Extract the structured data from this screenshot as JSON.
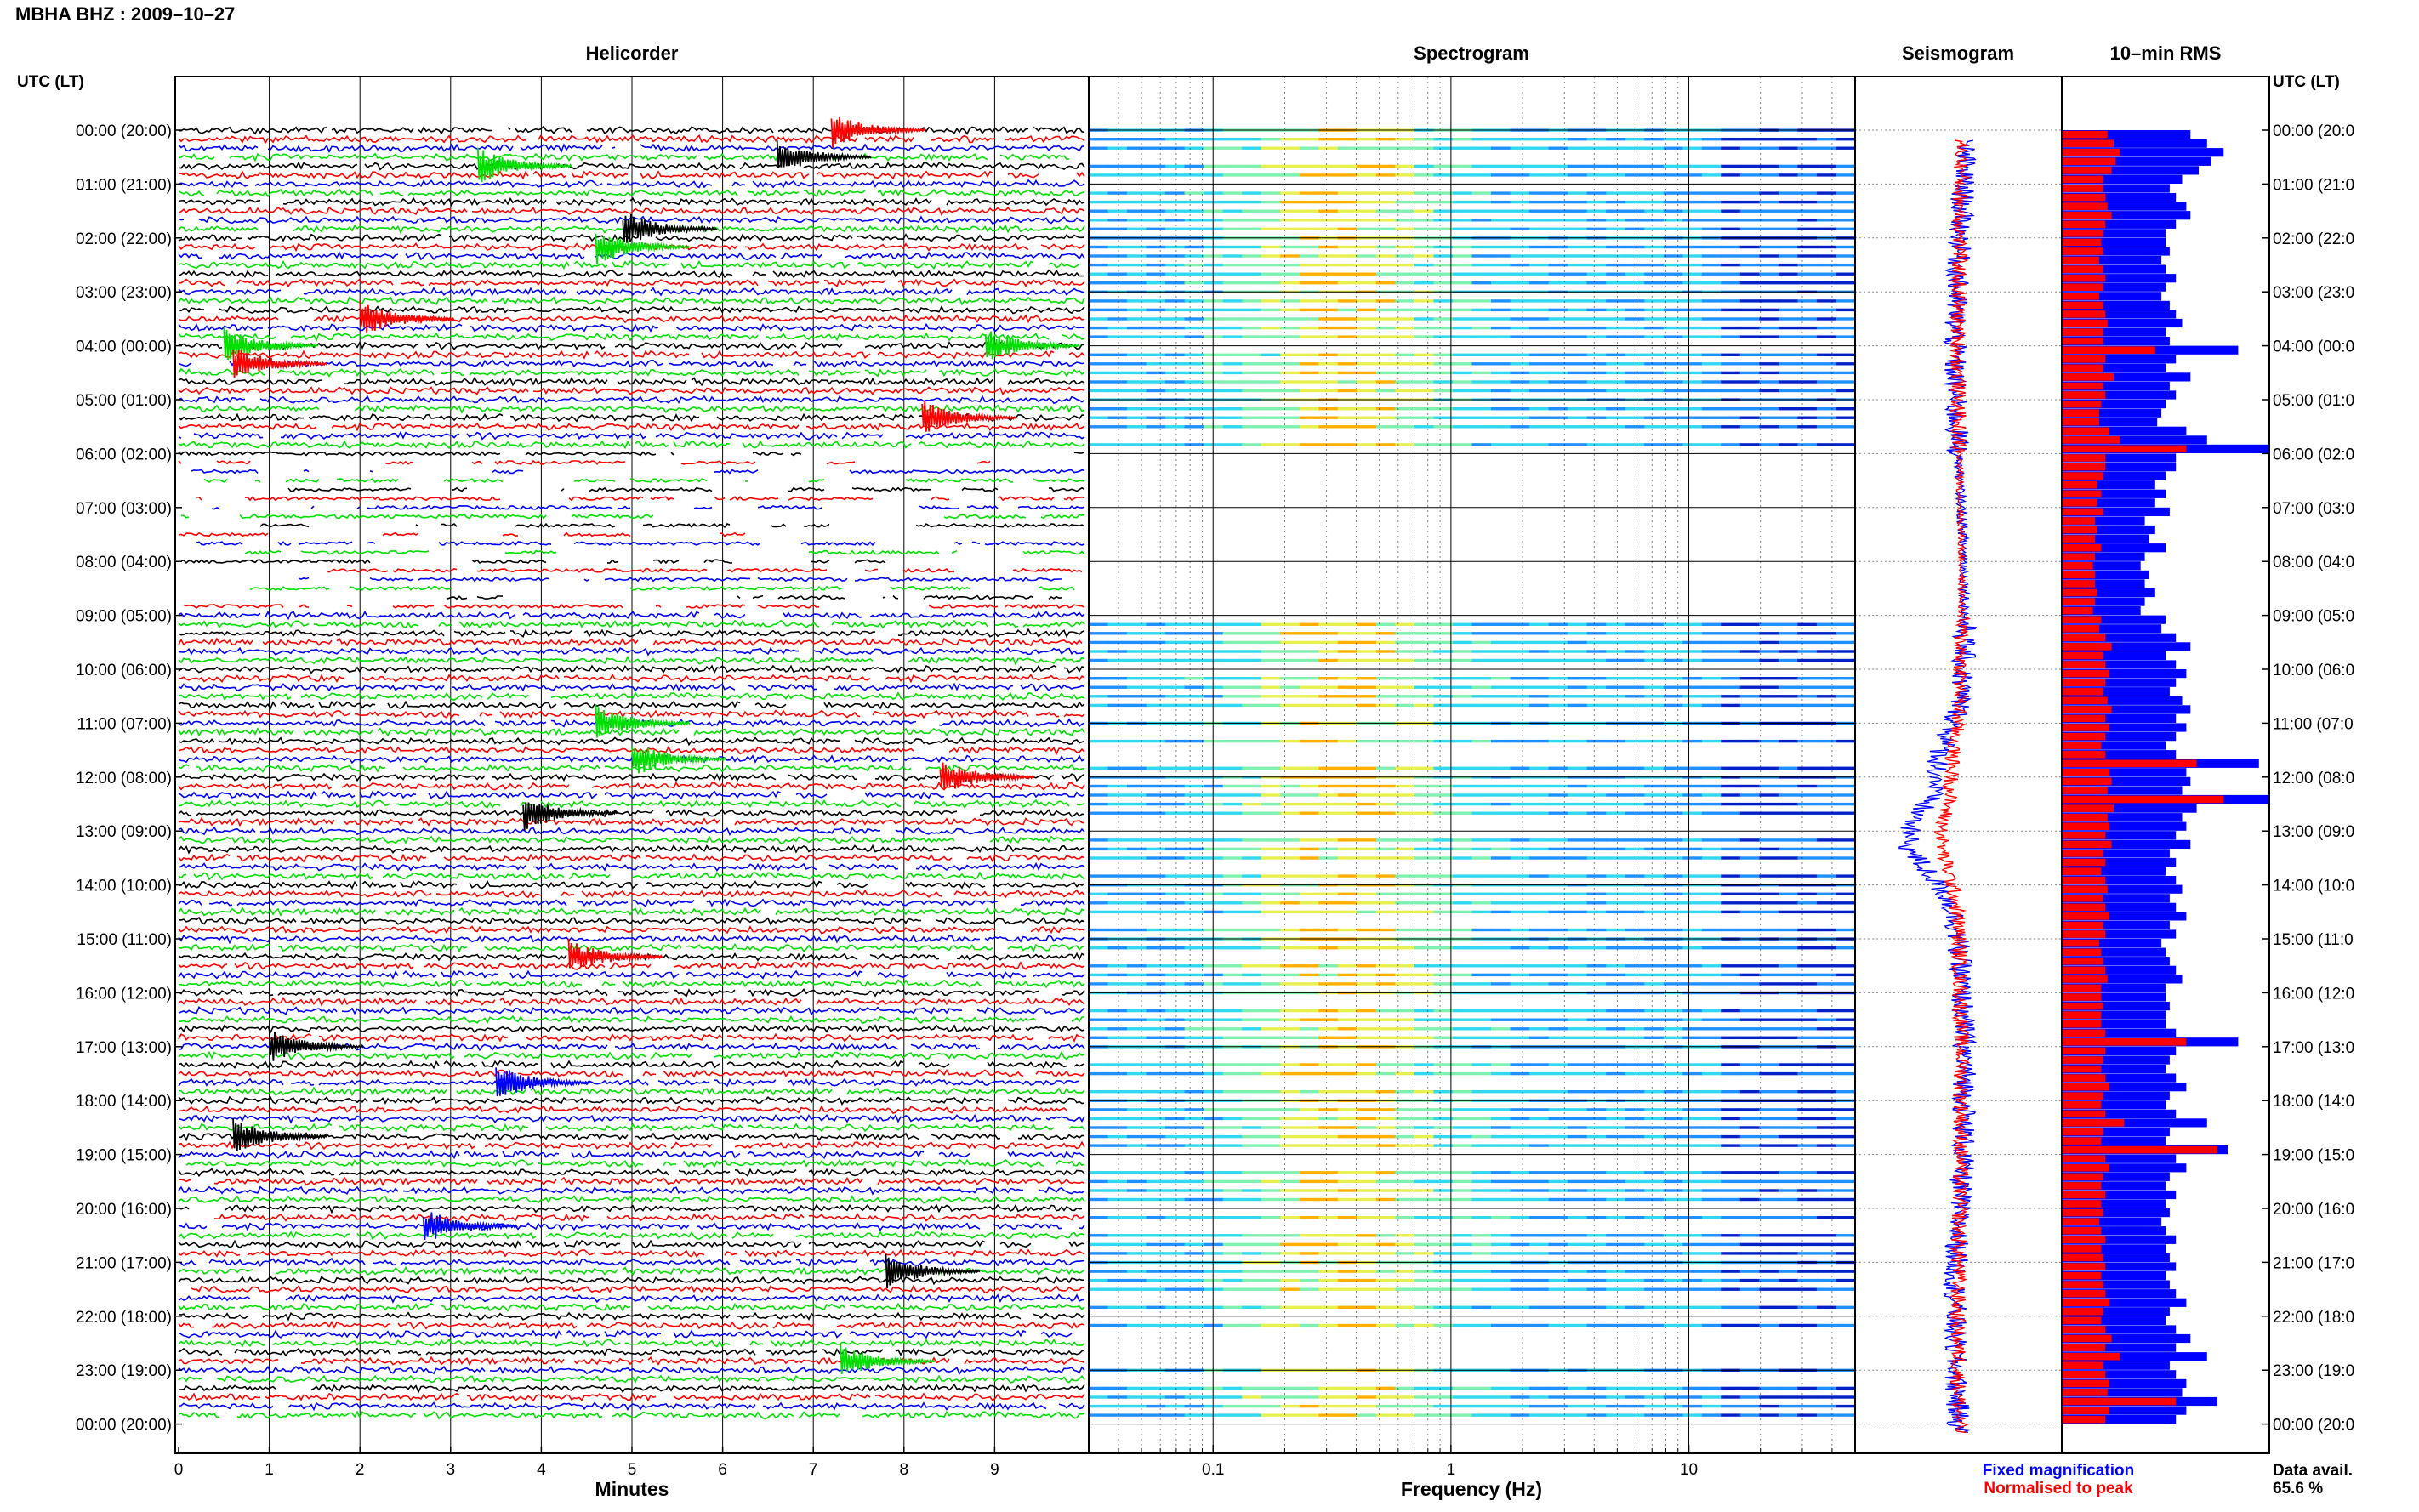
{
  "header": {
    "title": "MBHA BHZ : 2009–10–27"
  },
  "panels": {
    "helicorder": "Helicorder",
    "spectrogram": "Spectrogram",
    "seismogram": "Seismogram",
    "rms": "10–min RMS"
  },
  "time_axis": {
    "title": "UTC (LT)",
    "labels": [
      "00:00 (20:00)",
      "01:00 (21:00)",
      "02:00 (22:00)",
      "03:00 (23:00)",
      "04:00 (00:00)",
      "05:00 (01:00)",
      "06:00 (02:00)",
      "07:00 (03:00)",
      "08:00 (04:00)",
      "09:00 (05:00)",
      "10:00 (06:00)",
      "11:00 (07:00)",
      "12:00 (08:00)",
      "13:00 (09:00)",
      "14:00 (10:00)",
      "15:00 (11:00)",
      "16:00 (12:00)",
      "17:00 (13:00)",
      "18:00 (14:00)",
      "19:00 (15:00)",
      "20:00 (16:00)",
      "21:00 (17:00)",
      "22:00 (18:00)",
      "23:00 (19:00)",
      "00:00 (20:00)"
    ],
    "right_labels": [
      "00:00 (20:0",
      "01:00 (21:0",
      "02:00 (22:0",
      "03:00 (23:0",
      "04:00 (00:0",
      "05:00 (01:0",
      "06:00 (02:0",
      "07:00 (03:0",
      "08:00 (04:0",
      "09:00 (05:0",
      "10:00 (06:0",
      "11:00 (07:0",
      "12:00 (08:0",
      "13:00 (09:0",
      "14:00 (10:0",
      "15:00 (11:0",
      "16:00 (12:0",
      "17:00 (13:0",
      "18:00 (14:0",
      "19:00 (15:0",
      "20:00 (16:0",
      "21:00 (17:0",
      "22:00 (18:0",
      "23:00 (19:0",
      "00:00 (20:0"
    ]
  },
  "minutes_axis": {
    "title": "Minutes",
    "ticks": [
      "0",
      "1",
      "2",
      "3",
      "4",
      "5",
      "6",
      "7",
      "8",
      "9"
    ]
  },
  "frequency_axis": {
    "title": "Frequency (Hz)",
    "ticks": [
      "0.1",
      "1",
      "10"
    ]
  },
  "legend": {
    "fixed": "Fixed magnification",
    "normalised": "Normalised to peak"
  },
  "availability": {
    "label": "Data avail.",
    "value": "65.6 %"
  },
  "colors": {
    "trace_cycle": [
      "#000000",
      "#ff0000",
      "#0000ff",
      "#00e000"
    ],
    "fixed": "#0000ff",
    "normalised": "#ff0000"
  },
  "chart_data": {
    "type": "helicorder",
    "date": "2009-10-27",
    "station": "MBHA BHZ",
    "rows_per_hour": 6,
    "hours": 24,
    "minutes_per_row": 10,
    "frequency_range_hz": [
      0.03,
      50
    ],
    "frequency_scale": "log",
    "data_availability_percent": 65.6,
    "gap_hours": [
      6,
      7,
      8
    ],
    "rms_fixed": [
      0.62,
      0.7,
      0.78,
      0.72,
      0.66,
      0.58,
      0.52,
      0.55,
      0.6,
      0.62,
      0.55,
      0.5,
      0.5,
      0.52,
      0.48,
      0.5,
      0.55,
      0.5,
      0.48,
      0.52,
      0.55,
      0.58,
      0.5,
      0.52,
      0.85,
      0.55,
      0.5,
      0.62,
      0.52,
      0.55,
      0.5,
      0.48,
      0.46,
      0.6,
      0.7,
      1.0,
      0.55,
      0.55,
      0.5,
      0.45,
      0.5,
      0.45,
      0.52,
      0.4,
      0.45,
      0.42,
      0.5,
      0.4,
      0.38,
      0.42,
      0.4,
      0.45,
      0.4,
      0.38,
      0.5,
      0.48,
      0.55,
      0.62,
      0.5,
      0.55,
      0.6,
      0.55,
      0.52,
      0.58,
      0.62,
      0.55,
      0.6,
      0.55,
      0.5,
      0.55,
      0.95,
      0.6,
      0.62,
      0.58,
      1.0,
      0.65,
      0.58,
      0.6,
      0.55,
      0.62,
      0.52,
      0.55,
      0.5,
      0.55,
      0.58,
      0.52,
      0.55,
      0.6,
      0.52,
      0.55,
      0.48,
      0.5,
      0.52,
      0.55,
      0.58,
      0.5,
      0.5,
      0.52,
      0.5,
      0.5,
      0.55,
      0.85,
      0.55,
      0.52,
      0.5,
      0.55,
      0.6,
      0.52,
      0.5,
      0.55,
      0.7,
      0.52,
      0.5,
      0.8,
      0.55,
      0.6,
      0.52,
      0.5,
      0.55,
      0.5,
      0.52,
      0.48,
      0.5,
      0.55,
      0.5,
      0.52,
      0.55,
      0.5,
      0.52,
      0.55,
      0.6,
      0.52,
      0.5,
      0.55,
      0.62,
      0.55,
      0.7,
      0.52,
      0.55,
      0.6,
      0.58,
      0.75,
      0.6,
      0.55
    ],
    "rms_normalised": [
      0.22,
      0.25,
      0.28,
      0.26,
      0.24,
      0.2,
      0.2,
      0.21,
      0.22,
      0.24,
      0.21,
      0.2,
      0.19,
      0.2,
      0.18,
      0.2,
      0.21,
      0.2,
      0.18,
      0.2,
      0.21,
      0.22,
      0.2,
      0.2,
      0.45,
      0.21,
      0.2,
      0.25,
      0.2,
      0.21,
      0.19,
      0.18,
      0.18,
      0.23,
      0.28,
      0.6,
      0.21,
      0.21,
      0.2,
      0.17,
      0.19,
      0.17,
      0.2,
      0.16,
      0.17,
      0.16,
      0.19,
      0.16,
      0.15,
      0.16,
      0.16,
      0.17,
      0.16,
      0.15,
      0.19,
      0.18,
      0.21,
      0.24,
      0.2,
      0.21,
      0.23,
      0.21,
      0.2,
      0.22,
      0.24,
      0.21,
      0.23,
      0.21,
      0.19,
      0.21,
      0.65,
      0.23,
      0.24,
      0.22,
      0.78,
      0.25,
      0.22,
      0.23,
      0.21,
      0.24,
      0.2,
      0.21,
      0.19,
      0.21,
      0.22,
      0.2,
      0.21,
      0.23,
      0.2,
      0.21,
      0.18,
      0.19,
      0.2,
      0.21,
      0.22,
      0.19,
      0.19,
      0.2,
      0.19,
      0.19,
      0.21,
      0.6,
      0.21,
      0.2,
      0.19,
      0.21,
      0.23,
      0.2,
      0.19,
      0.21,
      0.3,
      0.2,
      0.19,
      0.75,
      0.21,
      0.23,
      0.2,
      0.19,
      0.21,
      0.19,
      0.2,
      0.18,
      0.19,
      0.21,
      0.19,
      0.2,
      0.21,
      0.19,
      0.2,
      0.21,
      0.23,
      0.2,
      0.19,
      0.21,
      0.24,
      0.21,
      0.28,
      0.2,
      0.21,
      0.23,
      0.22,
      0.55,
      0.23,
      0.21
    ]
  }
}
